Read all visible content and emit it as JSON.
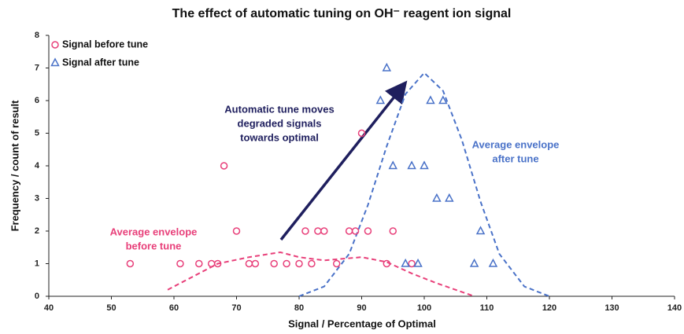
{
  "chart_data": {
    "type": "scatter",
    "title": "The effect of automatic tuning on OH⁻ reagent ion signal",
    "x_label": "Signal / Percentage of Optimal",
    "y_label": "Frequency / count of result",
    "xlim": [
      40,
      140
    ],
    "xticks": [
      40,
      50,
      60,
      70,
      80,
      90,
      100,
      110,
      120,
      130,
      140
    ],
    "ylim": [
      0,
      8
    ],
    "yticks": [
      0,
      1,
      2,
      3,
      4,
      5,
      6,
      7,
      8
    ],
    "legend": "top-left",
    "series": [
      {
        "name": "Signal before tune",
        "marker": "circle",
        "color": "#e8407a",
        "x": [
          53,
          61,
          64,
          66,
          67,
          72,
          73,
          76,
          78,
          80,
          82,
          86,
          94,
          98,
          70,
          81,
          83,
          84,
          88,
          89,
          91,
          95,
          68,
          90
        ],
        "values": [
          1,
          1,
          1,
          1,
          1,
          1,
          1,
          1,
          1,
          1,
          1,
          1,
          1,
          1,
          2,
          2,
          2,
          2,
          2,
          2,
          2,
          2,
          4,
          5
        ]
      },
      {
        "name": "Signal after tune",
        "marker": "triangle",
        "color": "#4a72c8",
        "x": [
          94,
          93,
          101,
          103,
          95,
          98,
          100,
          102,
          104,
          109,
          97,
          99,
          108,
          111
        ],
        "values": [
          7,
          6,
          6,
          6,
          4,
          4,
          4,
          3,
          3,
          2,
          1,
          1,
          1,
          1
        ]
      }
    ],
    "envelopes": [
      {
        "color": "#e8407a",
        "x": [
          59,
          63,
          67,
          72,
          77,
          80,
          84,
          90,
          94,
          98,
          102,
          105,
          108
        ],
        "values": [
          0.2,
          0.6,
          1.0,
          1.2,
          1.35,
          1.2,
          1.1,
          1.2,
          1.05,
          0.7,
          0.4,
          0.2,
          0
        ]
      },
      {
        "color": "#4a72c8",
        "x": [
          80,
          84,
          88,
          91,
          94,
          97,
          100,
          103,
          106,
          109,
          112,
          116,
          120
        ],
        "values": [
          0,
          0.3,
          1.3,
          2.8,
          4.6,
          6.2,
          6.85,
          6.3,
          4.8,
          2.9,
          1.3,
          0.3,
          0
        ]
      }
    ],
    "annotations": [
      {
        "lines": [
          "Automatic tune moves",
          "degraded signals",
          "towards optimal"
        ],
        "color": "#1f1f5e"
      },
      {
        "lines": [
          "Average envelope",
          "after tune"
        ],
        "color": "#4a72c8"
      },
      {
        "lines": [
          "Average envelope",
          "before tune"
        ],
        "color": "#e8407a"
      }
    ]
  }
}
